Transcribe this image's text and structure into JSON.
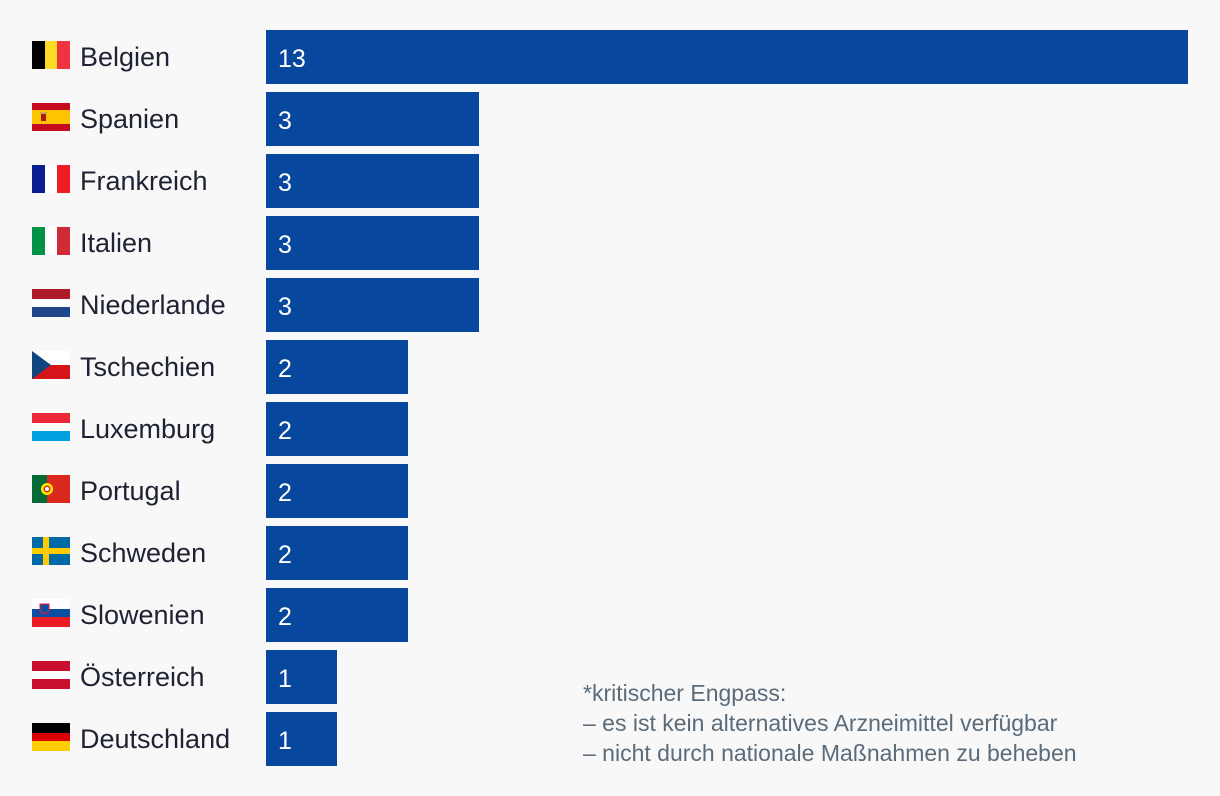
{
  "chart_data": {
    "type": "bar",
    "orientation": "horizontal",
    "categories": [
      "Belgien",
      "Spanien",
      "Frankreich",
      "Italien",
      "Niederlande",
      "Tschechien",
      "Luxemburg",
      "Portugal",
      "Schweden",
      "Slowenien",
      "Österreich",
      "Deutschland"
    ],
    "values": [
      13,
      3,
      3,
      3,
      3,
      2,
      2,
      2,
      2,
      2,
      1,
      1
    ],
    "xlim": [
      0,
      13
    ],
    "bar_color": "#08479e",
    "grid": false,
    "legend": "none"
  },
  "rows": [
    {
      "country": "Belgien",
      "value": "13",
      "flag": "belgium-flag-icon"
    },
    {
      "country": "Spanien",
      "value": "3",
      "flag": "spain-flag-icon"
    },
    {
      "country": "Frankreich",
      "value": "3",
      "flag": "france-flag-icon"
    },
    {
      "country": "Italien",
      "value": "3",
      "flag": "italy-flag-icon"
    },
    {
      "country": "Niederlande",
      "value": "3",
      "flag": "netherlands-flag-icon"
    },
    {
      "country": "Tschechien",
      "value": "2",
      "flag": "czechia-flag-icon"
    },
    {
      "country": "Luxemburg",
      "value": "2",
      "flag": "luxembourg-flag-icon"
    },
    {
      "country": "Portugal",
      "value": "2",
      "flag": "portugal-flag-icon"
    },
    {
      "country": "Schweden",
      "value": "2",
      "flag": "sweden-flag-icon"
    },
    {
      "country": "Slowenien",
      "value": "2",
      "flag": "slovenia-flag-icon"
    },
    {
      "country": "Österreich",
      "value": "1",
      "flag": "austria-flag-icon"
    },
    {
      "country": "Deutschland",
      "value": "1",
      "flag": "germany-flag-icon"
    }
  ],
  "note": {
    "line1": "*kritischer Engpass:",
    "line2": "– es ist kein alternatives Arzneimittel verfügbar",
    "line3": "– nicht durch nationale Maßnahmen zu beheben"
  }
}
